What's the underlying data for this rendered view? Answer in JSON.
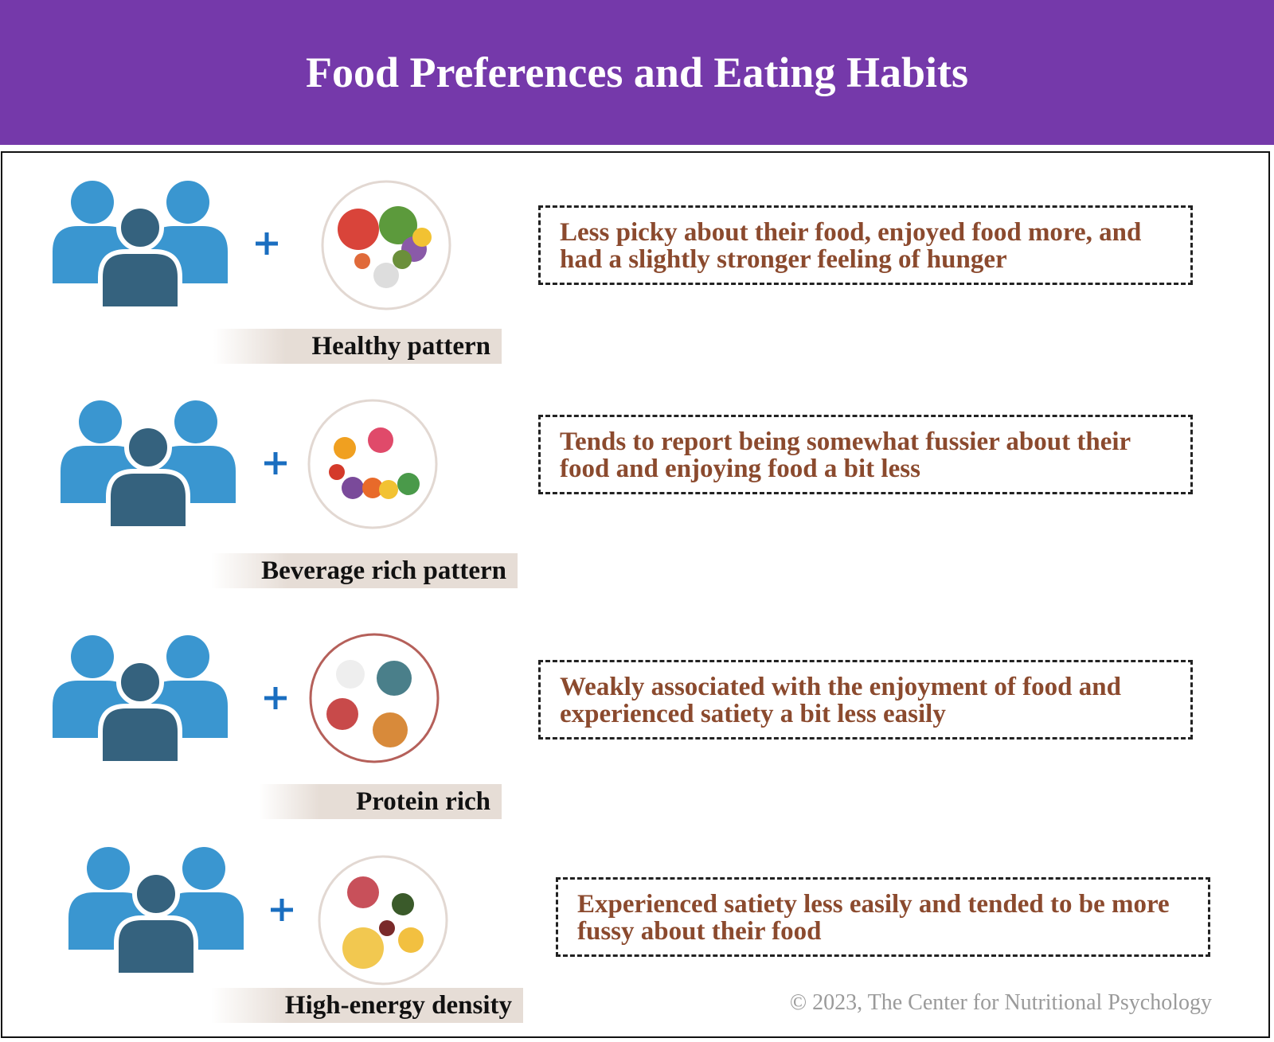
{
  "header": {
    "title": "Food Preferences and Eating Habits"
  },
  "rows": [
    {
      "label": "Healthy pattern",
      "description": "Less picky about their food, enjoyed food more, and had a slightly stronger feeling of hunger"
    },
    {
      "label": "Beverage rich pattern",
      "description": "Tends to report being somewhat fussier about their food and enjoying food a bit less"
    },
    {
      "label": "Protein rich",
      "description": "Weakly associated with the enjoyment of food and experienced satiety a bit less easily"
    },
    {
      "label": "High-energy density",
      "description": "Experienced satiety less easily and tended to be more fussy about their food"
    }
  ],
  "footer": {
    "copyright": "© 2023, The Center for Nutritional Psychology"
  }
}
